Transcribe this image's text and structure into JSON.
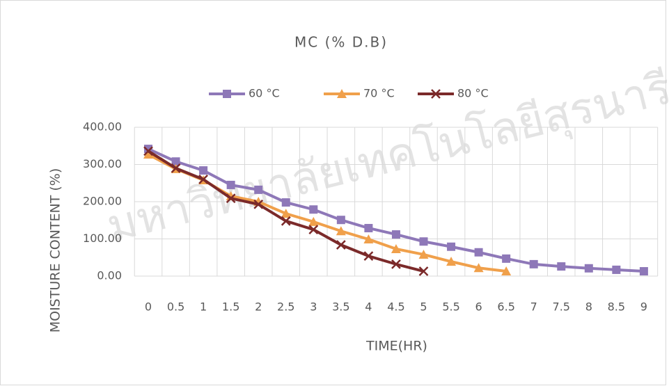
{
  "chart_data": {
    "type": "line",
    "title": "MC (% D.B)",
    "watermark": "มหาวิทยาลัยเทคโนโลยีสุรนารี",
    "x_label": "TIME(HR)",
    "y_label": "MOISTURE CONTENT (%)",
    "categories": [
      "0",
      "0.5",
      "1",
      "1.5",
      "2",
      "2.5",
      "3",
      "3.5",
      "4",
      "4.5",
      "5",
      "5.5",
      "6",
      "6.5",
      "7",
      "7.5",
      "8",
      "8.5",
      "9"
    ],
    "series": [
      {
        "name": "60 °C",
        "color": "#8e78b8",
        "marker": "square",
        "values": [
          342,
          308,
          284,
          245,
          232,
          198,
          179,
          151,
          129,
          112,
          93,
          79,
          64,
          47,
          32,
          26,
          21,
          17,
          13
        ]
      },
      {
        "name": "70 °C",
        "color": "#f0a04b",
        "marker": "triangle",
        "values": [
          327,
          288,
          258,
          215,
          200,
          168,
          146,
          121,
          99,
          73,
          58,
          39,
          22,
          13,
          null,
          null,
          null,
          null,
          null
        ]
      },
      {
        "name": "80 °C",
        "color": "#7b2a2a",
        "marker": "x",
        "values": [
          336,
          290,
          260,
          209,
          193,
          148,
          125,
          84,
          54,
          32,
          13,
          null,
          null,
          null,
          null,
          null,
          null,
          null,
          null
        ]
      }
    ],
    "ylim": [
      0,
      400
    ],
    "yticks": [
      {
        "value": 0,
        "label": "0.00"
      },
      {
        "value": 100,
        "label": "100.00"
      },
      {
        "value": 200,
        "label": "200.00"
      },
      {
        "value": 300,
        "label": "300.00"
      },
      {
        "value": 400,
        "label": "400.00"
      }
    ],
    "grid": true,
    "legend": "top"
  }
}
